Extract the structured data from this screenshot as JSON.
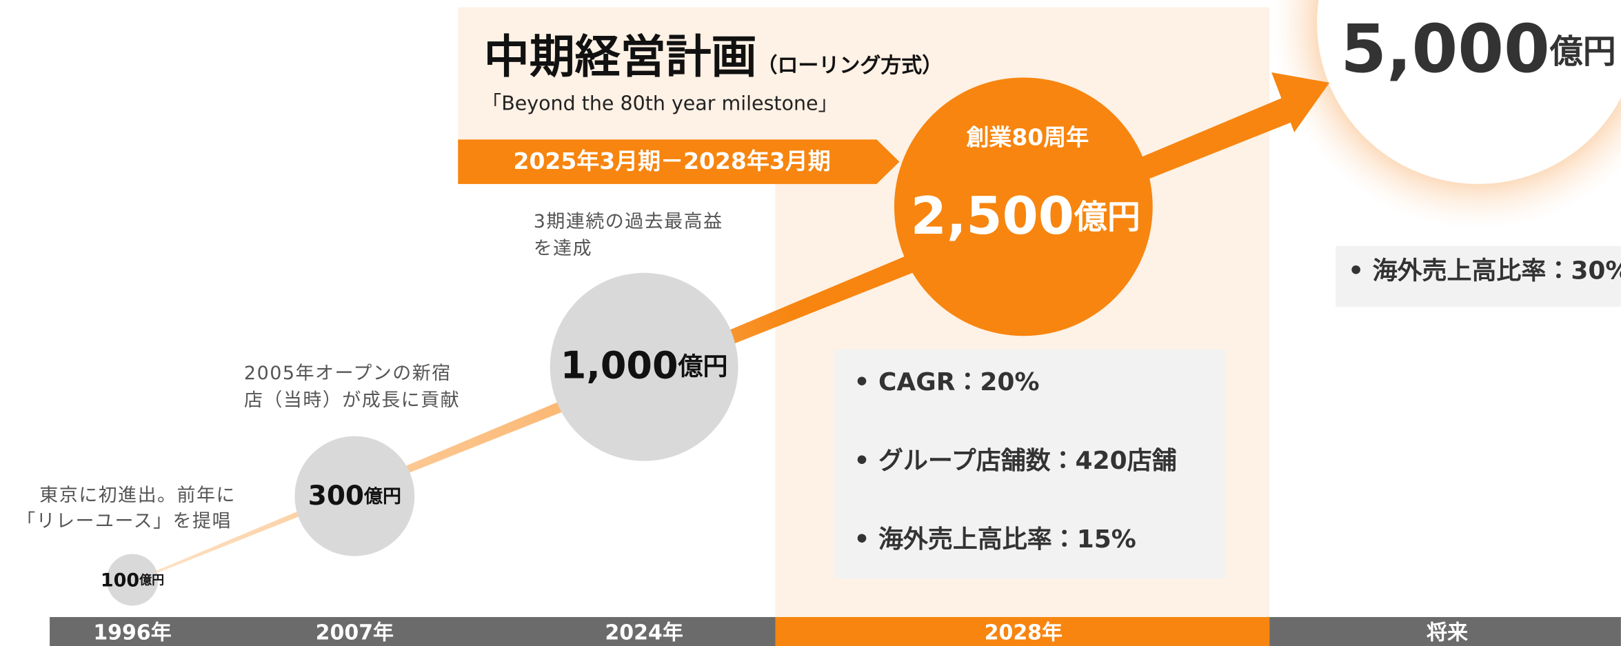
{
  "header": {
    "title": "中期経営計画",
    "title_note": "（ローリング方式）",
    "subtitle": "「Beyond the 80th year milestone」",
    "period": "2025年3月期－2028年3月期"
  },
  "milestones": [
    {
      "year": "1996年",
      "value": "100",
      "unit": "億円",
      "note": [
        "東京に初進出。前年に",
        "「リレーユース」を提唱"
      ]
    },
    {
      "year": "2007年",
      "value": "300",
      "unit": "億円",
      "note": [
        "2005年オープンの新宿",
        "店（当時）が成長に貢献"
      ]
    },
    {
      "year": "2024年",
      "value": "1,000",
      "unit": "億円",
      "note": [
        "3期連続の過去最高益",
        "を達成"
      ]
    },
    {
      "year": "2028年",
      "value": "2,500",
      "unit": "億円",
      "label": "創業80周年"
    }
  ],
  "plan_bullets": [
    "• CAGR：20%",
    "• グループ店舗数：420店舗",
    "• 海外売上高比率：15%"
  ],
  "future": {
    "year": "将来",
    "value": "5,000",
    "unit": "億円",
    "bullets": [
      "• 海外売上高比率：30%"
    ]
  }
}
